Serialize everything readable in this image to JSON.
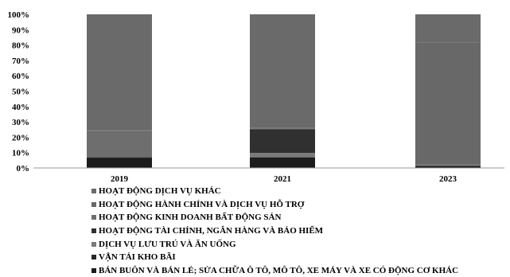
{
  "chart_data": {
    "type": "bar",
    "stacked": true,
    "percent": true,
    "categories": [
      "2019",
      "2021",
      "2023"
    ],
    "y_ticks": [
      "0%",
      "10%",
      "20%",
      "30%",
      "40%",
      "50%",
      "60%",
      "70%",
      "80%",
      "90%",
      "100%"
    ],
    "ylim": [
      0,
      100
    ],
    "grid": false,
    "legend_position": "bottom",
    "series": [
      {
        "name": "BÁN BUÔN VÀ BÁN LẺ; SỬA CHỮA Ô TÔ, MÔ TÔ, XE MÁY VÀ XE CÓ ĐỘNG CƠ KHÁC",
        "color": "#1c1c1c",
        "values": [
          6.5,
          6.8,
          1.2
        ]
      },
      {
        "name": "VẬN TẢI KHO BÃI",
        "color": "#262626",
        "values": [
          0.3,
          0.3,
          0.3
        ]
      },
      {
        "name": "DỊCH VỤ LƯU TRÚ VÀ ĂN UỐNG",
        "color": "#7a7a7a",
        "values": [
          0.0,
          2.7,
          0.2
        ]
      },
      {
        "name": "HOẠT ĐỘNG TÀI CHÍNH, NGÂN HÀNG VÀ BẢO HIỂM",
        "color": "#303030",
        "values": [
          0.2,
          15.5,
          0.3
        ]
      },
      {
        "name": "HOẠT ĐỘNG KINH DOANH BẤT ĐỘNG SẢN",
        "color": "#6e6e6e",
        "values": [
          17.0,
          0.2,
          0.2
        ]
      },
      {
        "name": "HOẠT ĐỘNG HÀNH CHÍNH VÀ DỊCH VỤ HỖ TRỢ",
        "color": "#686868",
        "values": [
          0.5,
          0.5,
          79.5
        ]
      },
      {
        "name": "HOẠT ĐỘNG DỊCH VỤ KHÁC",
        "color": "#6a6a6a",
        "values": [
          75.5,
          74.0,
          18.3
        ]
      }
    ]
  }
}
